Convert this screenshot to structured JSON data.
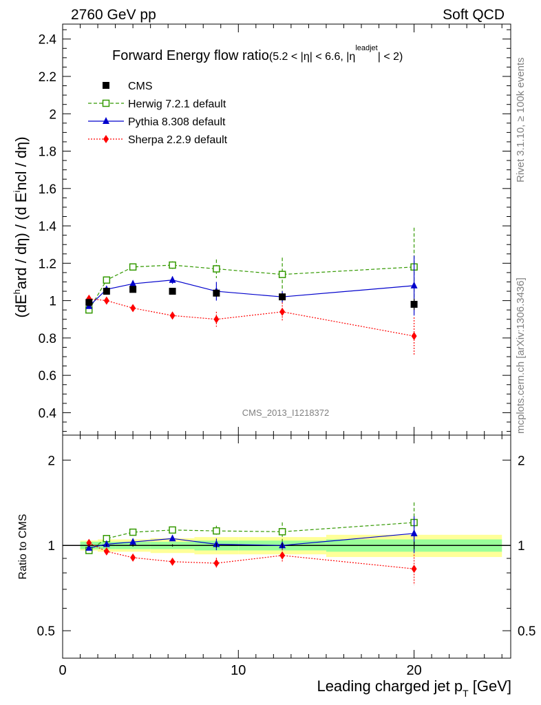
{
  "header": {
    "left": "2760 GeV pp",
    "right": "Soft QCD"
  },
  "side": {
    "top": "Rivet 3.1.10, ≥ 100k events",
    "bottom": "mcplots.cern.ch [arXiv:1306.3436]"
  },
  "chart_data": {
    "type": "scatter",
    "title": "Forward Energy flow ratio",
    "title_suffix": "(5.2 < |η| < 6.6, |η",
    "title_sup": "leadjet",
    "title_end": "| < 2)",
    "watermark": "CMS_2013_I1218372",
    "ylabel": "(dE^{h}ard / dη) / (d E^{i}ncl / dη)",
    "ylabel_main_1": "(dE",
    "ylabel_sup_1": "h",
    "ylabel_main_2": "ard / dη) / (d E",
    "ylabel_sup_2": "i",
    "ylabel_main_3": "ncl / dη)",
    "ratio_ylabel": "Ratio to CMS",
    "xlabel": "Leading charged jet p",
    "xlabel_sub": "T",
    "xlabel_unit": " [GeV]",
    "xlim": [
      0,
      25.5
    ],
    "ylim": [
      0.28,
      2.48
    ],
    "ratio_ylim": [
      0.4,
      2.45
    ],
    "x_ticks": [
      0,
      10,
      20
    ],
    "y_ticks": [
      0.4,
      0.6,
      0.8,
      1,
      1.2,
      1.4,
      1.6,
      1.8,
      2,
      2.2,
      2.4
    ],
    "ratio_y_ticks": [
      0.5,
      1,
      2
    ],
    "ratio_y_labels": [
      "0.5",
      "1",
      "2"
    ],
    "legend_position": "top-left",
    "series": [
      {
        "name": "CMS",
        "color": "#000000",
        "marker": "filled-square",
        "line": "none",
        "points": [
          {
            "x": 1.5,
            "y": 0.99,
            "err": 0.01
          },
          {
            "x": 2.5,
            "y": 1.05,
            "err": 0.01
          },
          {
            "x": 4.0,
            "y": 1.06,
            "err": 0.01
          },
          {
            "x": 6.25,
            "y": 1.05,
            "err": 0.01
          },
          {
            "x": 8.75,
            "y": 1.04,
            "err": 0.02
          },
          {
            "x": 12.5,
            "y": 1.02,
            "err": 0.02
          },
          {
            "x": 20.0,
            "y": 0.98,
            "err": 0.03
          }
        ]
      },
      {
        "name": "Herwig 7.2.1 default",
        "color": "#339900",
        "marker": "open-square",
        "line": "dashed",
        "points": [
          {
            "x": 1.5,
            "y": 0.95,
            "err": 0.01
          },
          {
            "x": 2.5,
            "y": 1.11,
            "err": 0.01
          },
          {
            "x": 4.0,
            "y": 1.18,
            "err": 0.01
          },
          {
            "x": 6.25,
            "y": 1.19,
            "err": 0.02
          },
          {
            "x": 8.75,
            "y": 1.17,
            "err": 0.05
          },
          {
            "x": 12.5,
            "y": 1.14,
            "err": 0.09
          },
          {
            "x": 20.0,
            "y": 1.18,
            "err": 0.21
          }
        ]
      },
      {
        "name": "Pythia 8.308 default",
        "color": "#0000cc",
        "marker": "filled-triangle",
        "line": "solid",
        "points": [
          {
            "x": 1.5,
            "y": 0.97,
            "err": 0.01
          },
          {
            "x": 2.5,
            "y": 1.06,
            "err": 0.01
          },
          {
            "x": 4.0,
            "y": 1.09,
            "err": 0.01
          },
          {
            "x": 6.25,
            "y": 1.11,
            "err": 0.02
          },
          {
            "x": 8.75,
            "y": 1.05,
            "err": 0.05
          },
          {
            "x": 12.5,
            "y": 1.02,
            "err": 0.03
          },
          {
            "x": 20.0,
            "y": 1.08,
            "err": 0.16
          }
        ]
      },
      {
        "name": "Sherpa 2.2.9 default",
        "color": "#ff0000",
        "marker": "filled-diamond",
        "line": "dotted",
        "points": [
          {
            "x": 1.5,
            "y": 1.01,
            "err": 0.01
          },
          {
            "x": 2.5,
            "y": 1.0,
            "err": 0.01
          },
          {
            "x": 4.0,
            "y": 0.96,
            "err": 0.01
          },
          {
            "x": 6.25,
            "y": 0.92,
            "err": 0.02
          },
          {
            "x": 8.75,
            "y": 0.9,
            "err": 0.04
          },
          {
            "x": 12.5,
            "y": 0.94,
            "err": 0.05
          },
          {
            "x": 20.0,
            "y": 0.81,
            "err": 0.1
          }
        ]
      }
    ],
    "ratio_band": {
      "x_edges": [
        1.0,
        2.0,
        3.0,
        5.0,
        7.5,
        10.0,
        15.0,
        25.0
      ],
      "inner": [
        0.03,
        0.03,
        0.03,
        0.03,
        0.04,
        0.04,
        0.05
      ],
      "outer": [
        0.04,
        0.05,
        0.05,
        0.06,
        0.07,
        0.07,
        0.09
      ],
      "inner_color": "#99ff99",
      "outer_color": "#ffff99"
    }
  }
}
